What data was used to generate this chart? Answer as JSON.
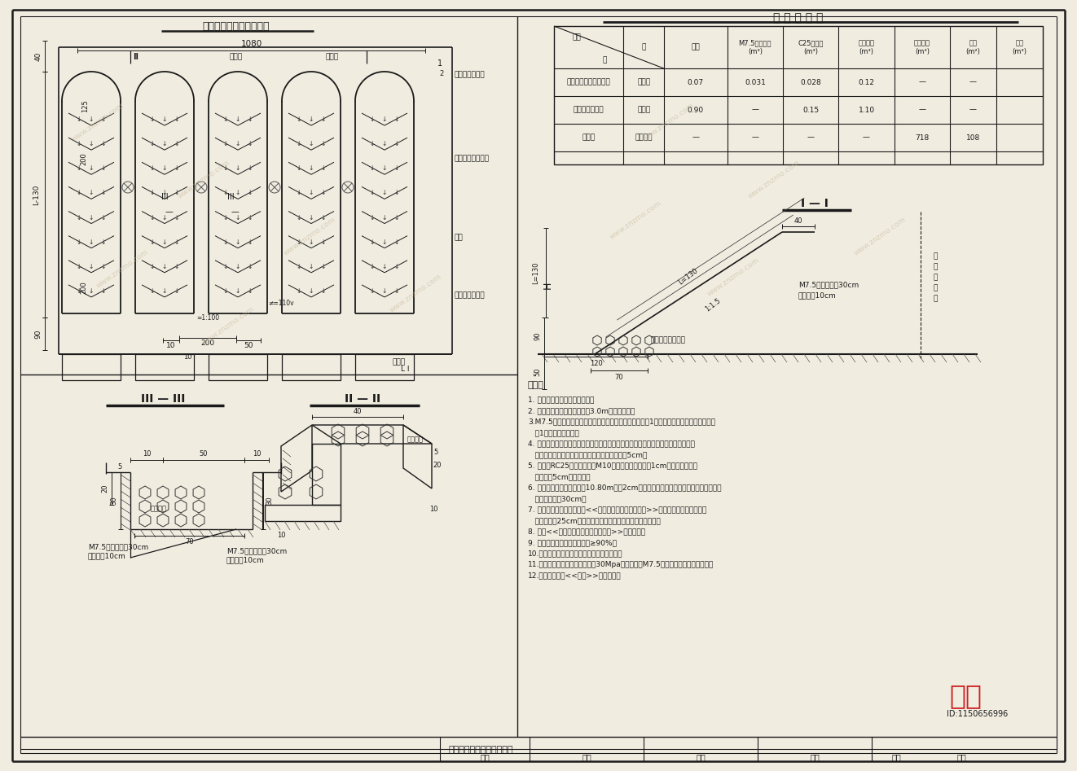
{
  "bg_color": "#f0ece0",
  "line_color": "#1a1a1a",
  "title_main": "拱型骨架护坡法自截面图",
  "table_title": "工 程 数 量 表",
  "section1": "I — I",
  "section2": "II — II",
  "section3": "III — III",
  "col_headers": [
    "M7.5浆砌片石\n(m³)",
    "C25混凝土\n(m³)",
    "砂砾垫层\n(m³)",
    "种植土方\n(m³)",
    "草皮\n(m²)",
    "植土\n(m³)"
  ],
  "table_rows": [
    [
      "拱型骨架结合草皮护坡",
      "每平方",
      "0.07",
      "0.031",
      "0.028",
      "0.12",
      "—",
      "—"
    ],
    [
      "基础与边沟排坡",
      "每延米",
      "0.90",
      "—",
      "0.15",
      "1.10",
      "—",
      "—"
    ],
    [
      "草皮铺",
      "每千平方",
      "—",
      "—",
      "—",
      "—",
      "718",
      "108"
    ]
  ],
  "notes": [
    "1. 本图尺寸均按厘米为单位标。",
    "2. 本图适用于坡高不超过大于3.0m的边坡防护。",
    "3.M7.5浆砌片石框架与混凝土框架内喷射粘植草，框架中1位为平型混凝土面板，草皮平均",
    "   前1组换置流液前进。",
    "4. 选购管网土流液，厚度有管接设流，管道施工采用踏流进行；人字形混凝土棱块与",
    "   坡地流养若干：平整乙层混凝土棱块内铺地流量5cm。",
    "5. 棱块石RC25水泥混凝土按M10方块砂浆砌筑，缝宽1cm；砌体孔式，管",
    "   空心内流5cm厚垫设石。",
    "6. 浆砌片石护坡与边沟距约10.80m宽距2cm宽的伸缩缝，缝内用沥青浆与煤渣填充大块",
    "   量，量厚度为30cm。",
    "7. 在所有护坡式端均合并配<<路基防护工程图则（三）>>中框式混凝土棱块有行错",
    "   缝（平均宽25cm）分隔流和元，应保证采购特性平和供流。",
    "8. 未配<<基础防护工程设计图（三）>>表达设定。",
    "9. 基础挡墙底，基层抗压达到≥90%。",
    "10.施工后还流量水管架对析流分析护架功能。",
    "11.用于基础工程所有达到不低于30Mpa，碎延景服M7.5水泥砂浆砌筑（年固度）。",
    "12.友尽拿设挡板<<基路>>流缓文件。"
  ],
  "page_label": "路基防护工程设计图（一）",
  "znzmo_text": "知末",
  "id_text": "ID:1150656996",
  "watermark": "www.znzmo.com",
  "watermark_color": "#c8b89a"
}
